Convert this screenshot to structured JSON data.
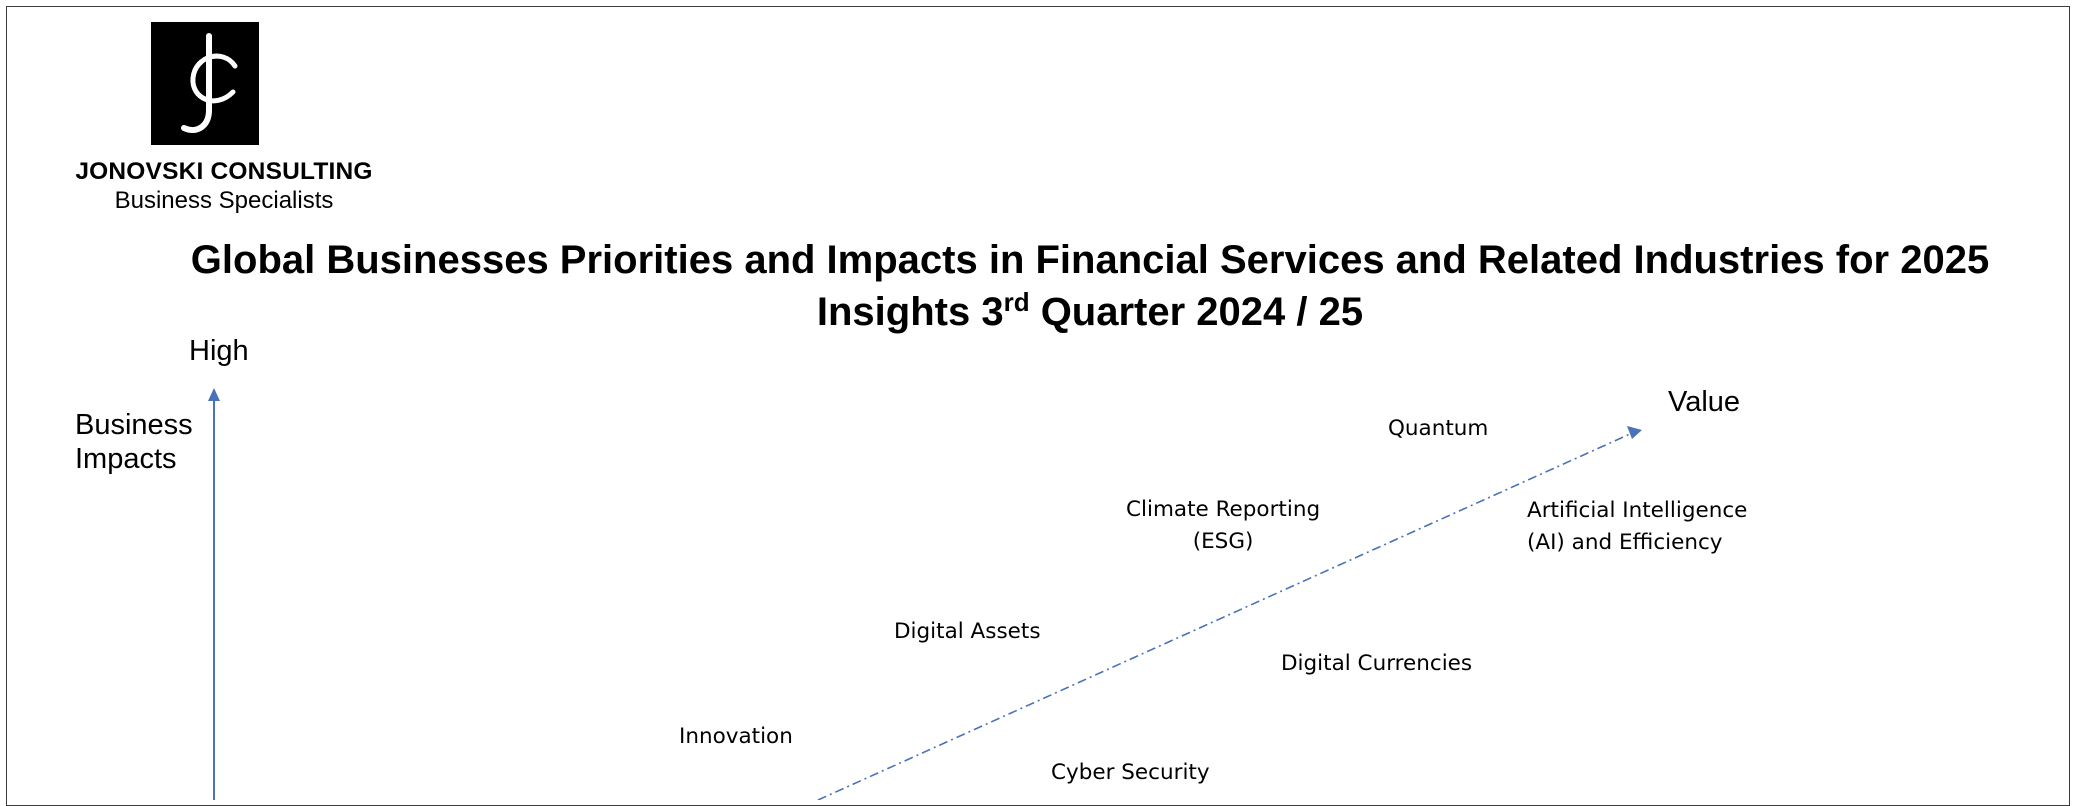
{
  "company": {
    "name": "JONOVSKI CONSULTING",
    "tagline": "Business Specialists",
    "logo_icon": "jc-monogram-logo",
    "logo_background": "#000000",
    "logo_foreground": "#ffffff"
  },
  "title": {
    "line1": "Global Businesses Priorities and Impacts in Financial Services and Related Industries for 2025",
    "line2_prefix": "Insights 3",
    "line2_superscript": "rd",
    "line2_suffix": " Quarter 2024 / 25"
  },
  "axes": {
    "y_high_label": "High",
    "y_label_line1": "Business",
    "y_label_line2": "Impacts",
    "diagonal_label": "Value",
    "axis_color": "#4a72b8"
  },
  "items": [
    {
      "line1": "Quantum",
      "line2": ""
    },
    {
      "line1": "Climate Reporting",
      "line2": "(ESG)"
    },
    {
      "line1": "Artificial Intelligence",
      "line2": "(AI) and Efficiency"
    },
    {
      "line1": "Digital Assets",
      "line2": ""
    },
    {
      "line1": "Digital Currencies",
      "line2": ""
    },
    {
      "line1": "Innovation",
      "line2": ""
    },
    {
      "line1": "Cyber Security",
      "line2": ""
    }
  ]
}
